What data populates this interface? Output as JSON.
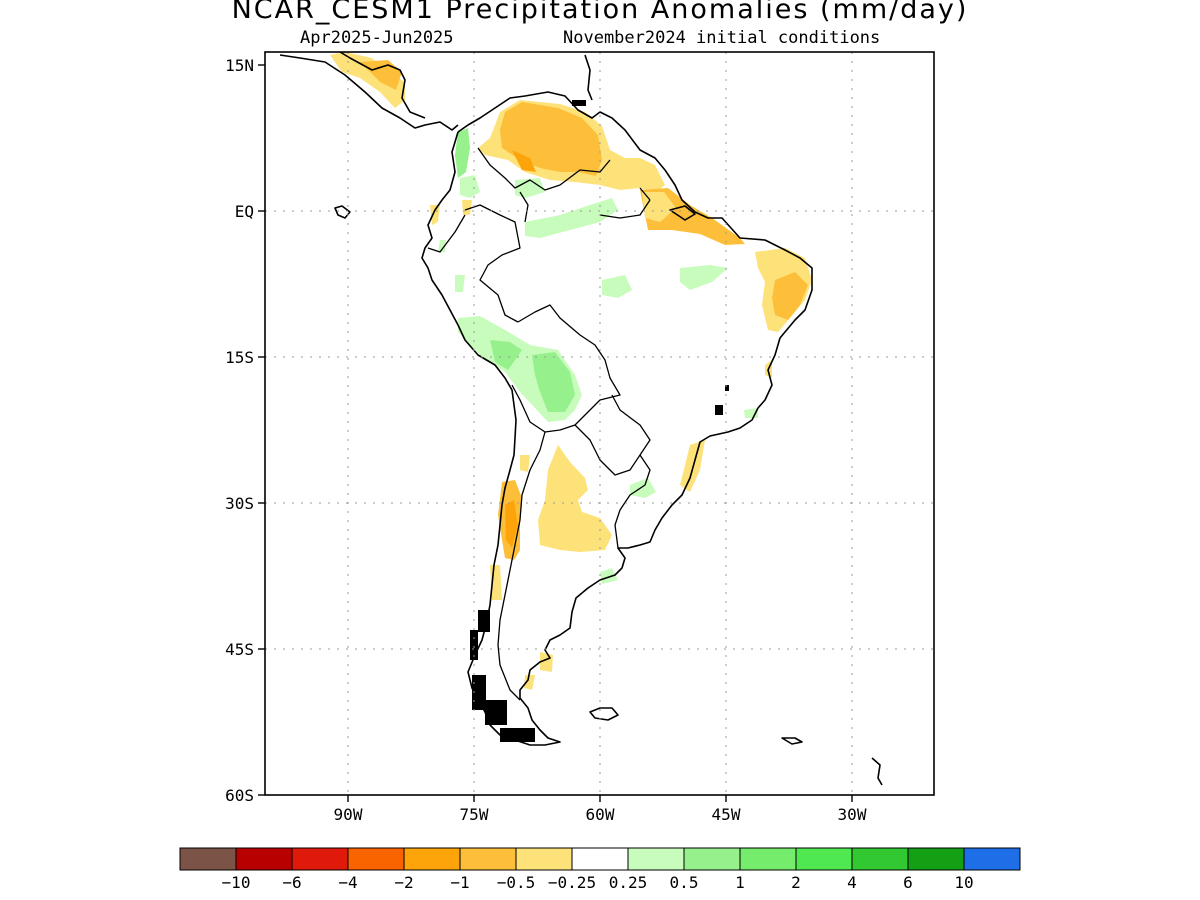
{
  "title": "NCAR_CESM1 Precipitation Anomalies (mm/day)",
  "subtitle_left": "Apr2025-Jun2025",
  "subtitle_right": "November2024 initial conditions",
  "lat_labels": [
    "15N",
    "EQ",
    "15S",
    "30S",
    "45S",
    "60S"
  ],
  "lon_labels": [
    "90W",
    "75W",
    "60W",
    "45W",
    "30W"
  ],
  "colorbar": {
    "colors": [
      "#7b5347",
      "#b80000",
      "#e01a0a",
      "#fa6400",
      "#fda40a",
      "#fdbf3a",
      "#fde27a",
      "#ffffff",
      "#c8fcbc",
      "#96f08c",
      "#76ec6c",
      "#50e850",
      "#32c832",
      "#14a014",
      "#1e6ee8"
    ],
    "labels": [
      "-10",
      "-6",
      "-4",
      "-2",
      "-1",
      "-0.5",
      "-0.25",
      "0.25",
      "0.5",
      "1",
      "2",
      "4",
      "6",
      "10"
    ]
  }
}
